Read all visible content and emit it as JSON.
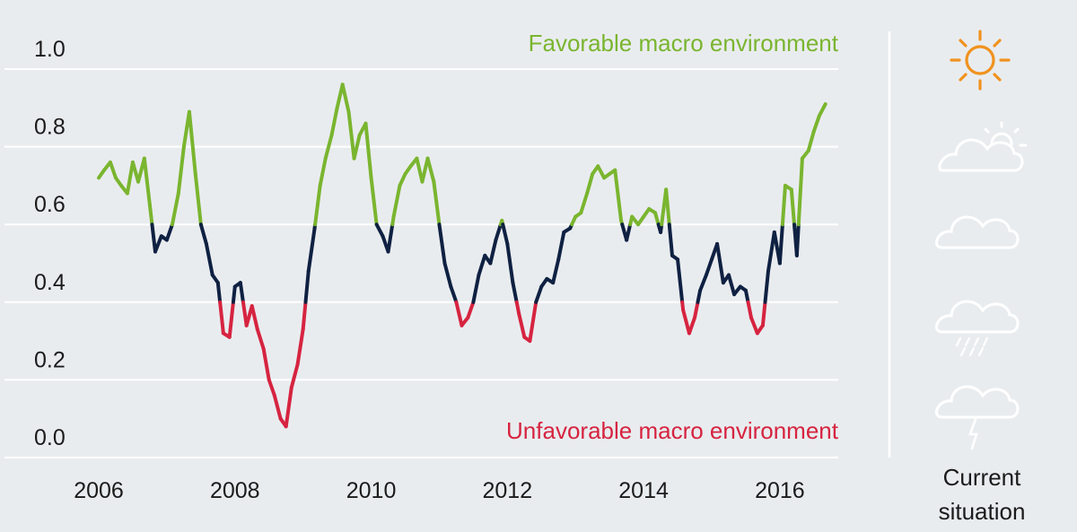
{
  "chart_data": {
    "type": "line",
    "title": "",
    "xlabel": "",
    "ylabel": "",
    "xlim": [
      2006.0,
      2016.7
    ],
    "ylim": [
      0.0,
      1.0
    ],
    "x_ticks": [
      "2006",
      "2008",
      "2010",
      "2012",
      "2014",
      "2016"
    ],
    "y_ticks": [
      "0.0",
      "0.2",
      "0.4",
      "0.6",
      "0.8",
      "1.0"
    ],
    "grid": true,
    "thresholds": {
      "favorable_above": 0.6,
      "unfavorable_below": 0.4
    },
    "colors": {
      "favorable": "#7ab52f",
      "neutral": "#0f2142",
      "unfavorable": "#d62440",
      "sun": "#f0921e",
      "cloud": "#ffffff",
      "grid": "#ffffff"
    },
    "annotations": {
      "favorable": "Favorable macro environment",
      "unfavorable": "Unfavorable macro environment"
    },
    "series": [
      {
        "x": [
          2006.0,
          2006.08,
          2006.17,
          2006.25,
          2006.33,
          2006.42,
          2006.5,
          2006.58,
          2006.67,
          2006.75,
          2006.83,
          2006.92,
          2007.0,
          2007.08,
          2007.17,
          2007.25,
          2007.33,
          2007.42,
          2007.5,
          2007.58,
          2007.67,
          2007.75,
          2007.83,
          2007.92,
          2008.0,
          2008.08,
          2008.17,
          2008.25,
          2008.33,
          2008.42,
          2008.5,
          2008.58,
          2008.67,
          2008.75,
          2008.83,
          2008.92,
          2009.0,
          2009.08,
          2009.17,
          2009.25,
          2009.33,
          2009.42,
          2009.5,
          2009.58,
          2009.67,
          2009.75,
          2009.83,
          2009.92,
          2010.0,
          2010.08,
          2010.17,
          2010.25,
          2010.33,
          2010.42,
          2010.5,
          2010.58,
          2010.67,
          2010.75,
          2010.83,
          2010.92,
          2011.0,
          2011.08,
          2011.17,
          2011.25,
          2011.33,
          2011.42,
          2011.5,
          2011.58,
          2011.67,
          2011.75,
          2011.83,
          2011.92,
          2012.0,
          2012.08,
          2012.17,
          2012.25,
          2012.33,
          2012.42,
          2012.5,
          2012.58,
          2012.67,
          2012.75,
          2012.83,
          2012.92,
          2013.0,
          2013.08,
          2013.17,
          2013.25,
          2013.33,
          2013.42,
          2013.5,
          2013.58,
          2013.67,
          2013.75,
          2013.83,
          2013.92,
          2014.0,
          2014.08,
          2014.17,
          2014.25,
          2014.33,
          2014.42,
          2014.5,
          2014.58,
          2014.67,
          2014.75,
          2014.83,
          2014.92,
          2015.0,
          2015.08,
          2015.17,
          2015.25,
          2015.33,
          2015.42,
          2015.5,
          2015.58,
          2015.67,
          2015.75,
          2015.83,
          2015.92,
          2016.0,
          2016.08,
          2016.17,
          2016.25,
          2016.33,
          2016.42,
          2016.5,
          2016.58,
          2016.67
        ],
        "y": [
          0.72,
          0.74,
          0.76,
          0.72,
          0.7,
          0.68,
          0.76,
          0.71,
          0.77,
          0.65,
          0.53,
          0.57,
          0.56,
          0.6,
          0.68,
          0.8,
          0.89,
          0.73,
          0.6,
          0.55,
          0.47,
          0.45,
          0.32,
          0.31,
          0.44,
          0.45,
          0.34,
          0.39,
          0.33,
          0.28,
          0.2,
          0.16,
          0.1,
          0.08,
          0.18,
          0.24,
          0.33,
          0.48,
          0.59,
          0.7,
          0.77,
          0.83,
          0.9,
          0.96,
          0.89,
          0.77,
          0.83,
          0.86,
          0.72,
          0.6,
          0.57,
          0.53,
          0.62,
          0.7,
          0.73,
          0.75,
          0.77,
          0.71,
          0.77,
          0.71,
          0.6,
          0.5,
          0.44,
          0.4,
          0.34,
          0.36,
          0.4,
          0.47,
          0.52,
          0.5,
          0.56,
          0.61,
          0.55,
          0.45,
          0.37,
          0.31,
          0.3,
          0.4,
          0.44,
          0.46,
          0.45,
          0.51,
          0.58,
          0.59,
          0.62,
          0.63,
          0.68,
          0.73,
          0.75,
          0.72,
          0.73,
          0.74,
          0.61,
          0.56,
          0.62,
          0.6,
          0.62,
          0.64,
          0.63,
          0.58,
          0.69,
          0.52,
          0.51,
          0.38,
          0.32,
          0.36,
          0.43,
          0.47,
          0.51,
          0.55,
          0.45,
          0.47,
          0.42,
          0.44,
          0.43,
          0.36,
          0.32,
          0.34,
          0.48,
          0.58,
          0.5,
          0.7,
          0.69,
          0.52,
          0.77,
          0.79,
          0.84,
          0.88,
          0.91
        ]
      }
    ]
  },
  "side_panel": {
    "caption_line1": "Current",
    "caption_line2": "situation",
    "icons": [
      "sun-icon",
      "partly-cloudy-icon",
      "cloud-icon",
      "rain-cloud-icon",
      "storm-cloud-icon"
    ],
    "active_icon": "sun-icon"
  }
}
